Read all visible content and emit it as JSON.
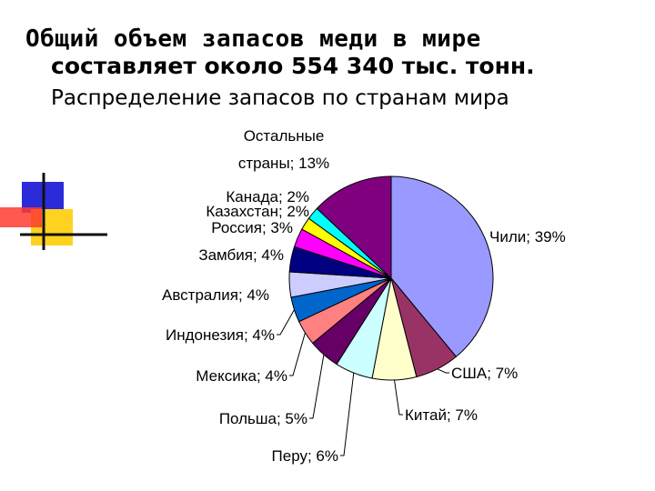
{
  "header": {
    "title_line1": "Общий объем запасов меди в мире",
    "title_line2": "составляет около 554 340 тыс. тонн.",
    "subtitle": "Распределение запасов по странам мира"
  },
  "chart_data": {
    "type": "pie",
    "title": "Распределение запасов по странам мира",
    "slices": [
      {
        "label": "Чили; 39%",
        "name": "Чили",
        "value": 39,
        "color": "#9999FF"
      },
      {
        "label": "США; 7%",
        "name": "США",
        "value": 7,
        "color": "#993366"
      },
      {
        "label": "Китай; 7%",
        "name": "Китай",
        "value": 7,
        "color": "#FFFFCC"
      },
      {
        "label": "Перу; 6%",
        "name": "Перу",
        "value": 6,
        "color": "#CCFFFF"
      },
      {
        "label": "Польша; 5%",
        "name": "Польша",
        "value": 5,
        "color": "#660066"
      },
      {
        "label": "Мексика; 4%",
        "name": "Мексика",
        "value": 4,
        "color": "#FF8080"
      },
      {
        "label": "Индонезия; 4%",
        "name": "Индонезия",
        "value": 4,
        "color": "#0066CC"
      },
      {
        "label": "Австралия; 4%",
        "name": "Австралия",
        "value": 4,
        "color": "#CCCCFF"
      },
      {
        "label": "Замбия; 4%",
        "name": "Замбия",
        "value": 4,
        "color": "#000080"
      },
      {
        "label": "Россия; 3%",
        "name": "Россия",
        "value": 3,
        "color": "#FF00FF"
      },
      {
        "label": "Казахстан; 2%",
        "name": "Казахстан",
        "value": 2,
        "color": "#FFFF00"
      },
      {
        "label": "Канада; 2%",
        "name": "Канада",
        "value": 2,
        "color": "#00FFFF"
      },
      {
        "label_lines": [
          "Остальные",
          "страны; 13%"
        ],
        "name": "Остальные страны",
        "value": 13,
        "color": "#800080"
      }
    ]
  }
}
